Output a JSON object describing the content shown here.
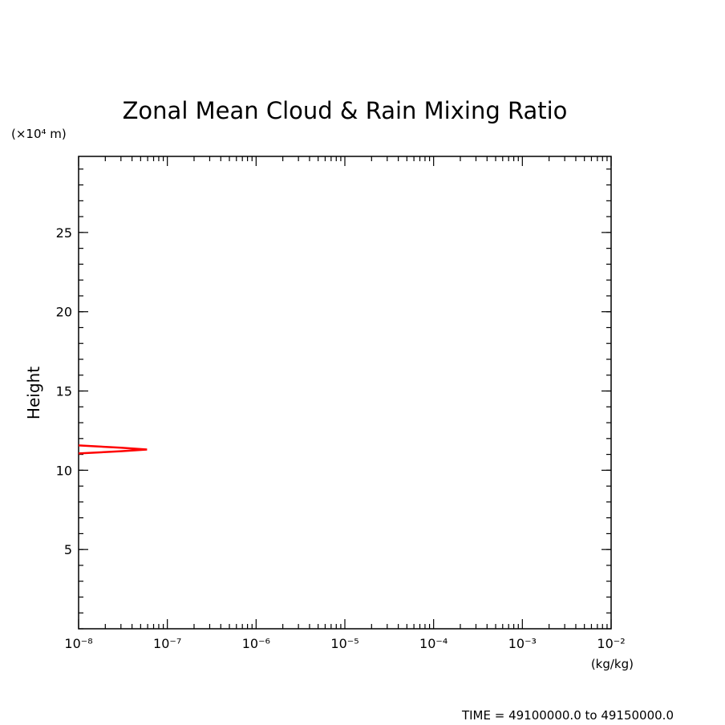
{
  "chart_data": {
    "type": "line",
    "title": "Zonal Mean Cloud & Rain Mixing Ratio",
    "y_unit": "(×10⁴ m)",
    "ylabel": "Height",
    "x_unit": "(kg/kg)",
    "footer": "TIME = 49100000.0 to 49150000.0",
    "xscale": "log",
    "xlim": [
      1e-08,
      0.01
    ],
    "xticks": [
      {
        "value": 1e-08,
        "label": "10⁻⁸"
      },
      {
        "value": 1e-07,
        "label": "10⁻⁷"
      },
      {
        "value": 1e-06,
        "label": "10⁻⁶"
      },
      {
        "value": 1e-05,
        "label": "10⁻⁵"
      },
      {
        "value": 0.0001,
        "label": "10⁻⁴"
      },
      {
        "value": 0.001,
        "label": "10⁻³"
      },
      {
        "value": 0.01,
        "label": "10⁻²"
      }
    ],
    "ylim": [
      0,
      29.8
    ],
    "yticks": [
      5,
      10,
      15,
      20,
      25
    ],
    "series": [
      {
        "color": "#ff0000",
        "values": [
          1e-08,
          3e-08,
          5.9e-08,
          3e-08,
          1e-08
        ],
        "y": [
          11.57,
          11.42,
          11.31,
          11.2,
          11.06
        ]
      }
    ]
  }
}
